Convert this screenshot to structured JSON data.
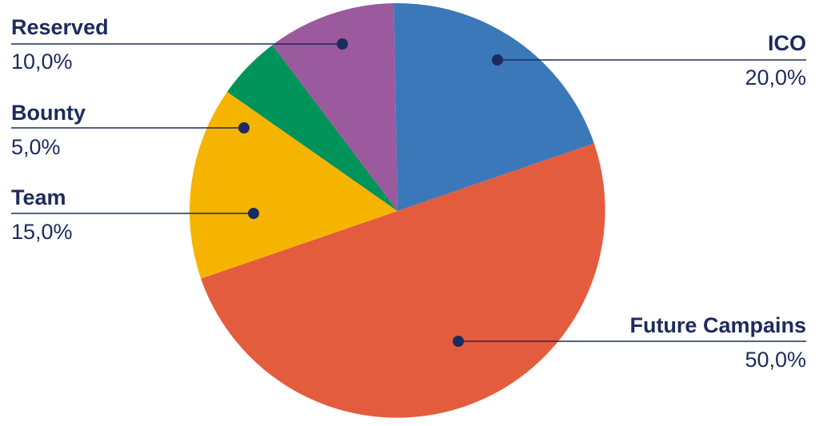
{
  "chart_data": {
    "type": "pie",
    "slices": [
      {
        "label": "ICO",
        "display_value": "20,0%",
        "color": "#3b78ba"
      },
      {
        "label": "Future Campains",
        "display_value": "50,0%",
        "color": "#e45c3e"
      },
      {
        "label": "Team",
        "display_value": "15,0%",
        "color": "#f5b400"
      },
      {
        "label": "Bounty",
        "display_value": "5,0%",
        "color": "#00935a"
      },
      {
        "label": "Reserved",
        "display_value": "10,0%",
        "color": "#9b5a9e"
      }
    ],
    "label_color": "#1c2b5e"
  }
}
